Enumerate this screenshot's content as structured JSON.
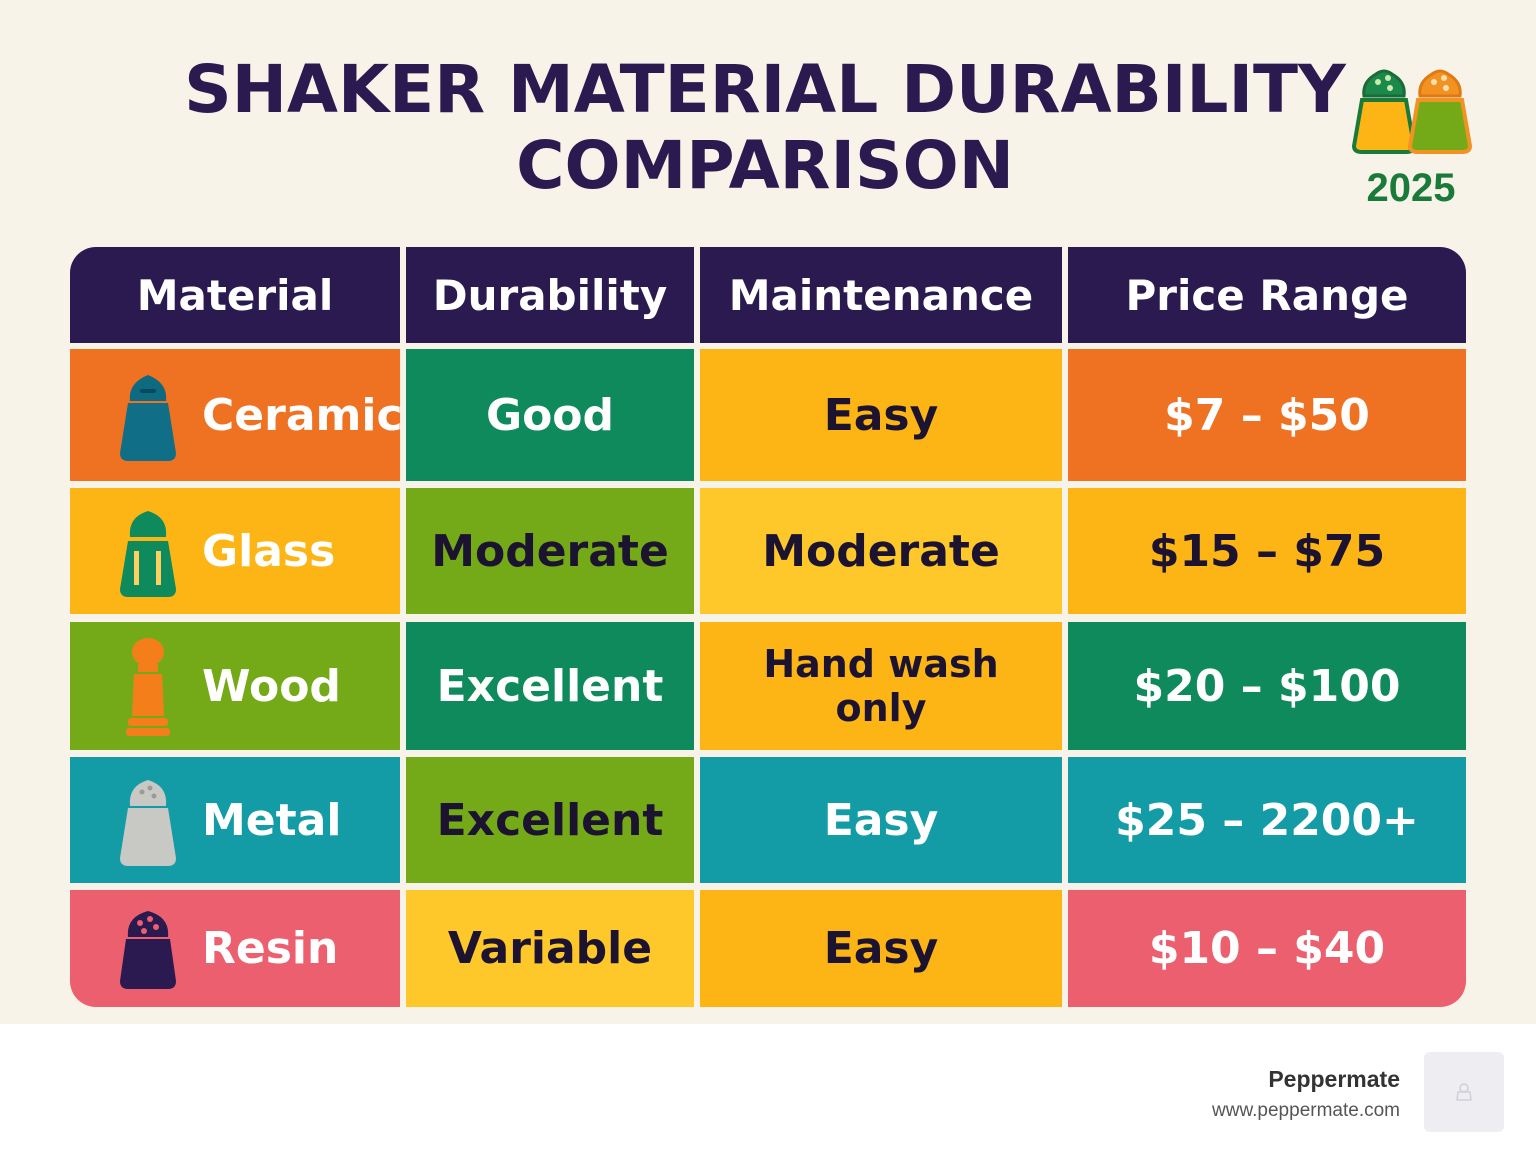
{
  "title": {
    "line1": "SHAKER MATERIAL DURABILITY",
    "line2": "COMPARISON"
  },
  "badge": {
    "year": "2025",
    "icon": "salt-and-pepper-shakers-icon"
  },
  "table": {
    "headers": [
      "Material",
      "Durability",
      "Maintenance",
      "Price Range"
    ],
    "rows": [
      {
        "material": "Ceramic",
        "durability": "Good",
        "maintenance": "Easy",
        "price": "$7 – $50",
        "icon": "ceramic-shaker-icon"
      },
      {
        "material": "Glass",
        "durability": "Moderate",
        "maintenance": "Moderate",
        "price": "$15 – $75",
        "icon": "glass-shaker-icon"
      },
      {
        "material": "Wood",
        "durability": "Excellent",
        "maintenance": "Hand wash only",
        "price": "$20 – $100",
        "icon": "wood-shaker-icon"
      },
      {
        "material": "Metal",
        "durability": "Excellent",
        "maintenance": "Easy",
        "price": "$25 – 2200+",
        "icon": "metal-shaker-icon"
      },
      {
        "material": "Resin",
        "durability": "Variable",
        "maintenance": "Easy",
        "price": "$10 – $40",
        "icon": "resin-shaker-icon"
      }
    ]
  },
  "colors": {
    "header_bg": "#2a1a4f",
    "orange": "#ee7222",
    "green": "#0e8a5c",
    "amber": "#fdb515",
    "yellow": "#fec72a",
    "lime": "#74aa18",
    "teal": "#139ca5",
    "pink": "#ec5f6e",
    "dark_text": "#1b1330",
    "light_text": "#ffffff"
  },
  "footer": {
    "brand": "Peppermate",
    "url": "www.peppermate.com"
  }
}
